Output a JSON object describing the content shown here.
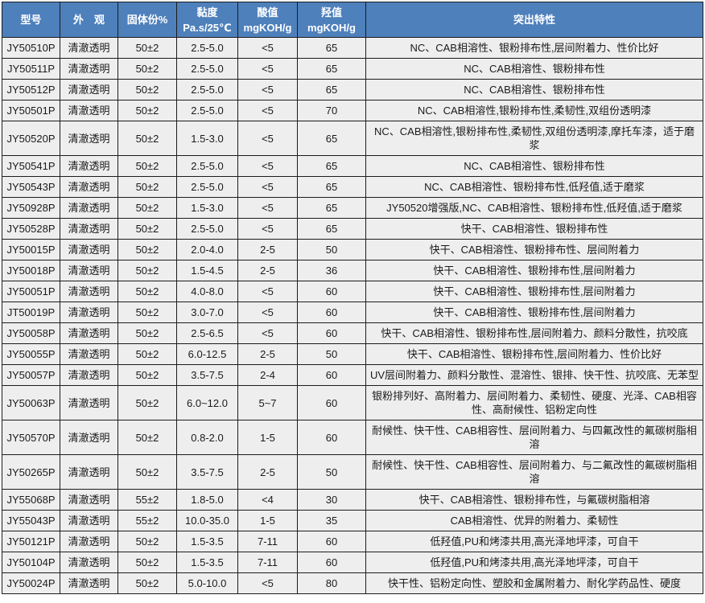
{
  "colors": {
    "header_bg": "#4E80BB",
    "header_text": "#FFFFFF",
    "row_bg": "#EFEEEE",
    "border": "#1C1C1C",
    "cell_text": "#1A1A1A"
  },
  "table": {
    "columns": [
      {
        "key": "model",
        "label": "型号"
      },
      {
        "key": "appearance",
        "label": "外　观"
      },
      {
        "key": "solid",
        "label": "固体份%"
      },
      {
        "key": "viscosity",
        "label": "黏度",
        "label2": "Pa.s/25℃"
      },
      {
        "key": "acid",
        "label": "酸值",
        "label2": "mgKOH/g"
      },
      {
        "key": "hydroxyl",
        "label": "羟值",
        "label2": "mgKOH/g"
      },
      {
        "key": "features",
        "label": "突出特性"
      }
    ],
    "rows": [
      [
        "JY50510P",
        "清澈透明",
        "50±2",
        "2.5-5.0",
        "<5",
        "65",
        "NC、CAB相溶性、银粉排布性,层间附着力、性价比好"
      ],
      [
        "JY50511P",
        "清澈透明",
        "50±2",
        "2.5-5.0",
        "<5",
        "65",
        "NC、CAB相溶性、银粉排布性"
      ],
      [
        "JY50512P",
        "清澈透明",
        "50±2",
        "2.5-5.0",
        "<5",
        "65",
        "NC、CAB相溶性、银粉排布性"
      ],
      [
        "JY50501P",
        "清澈透明",
        "50±2",
        "2.5-5.0",
        "<5",
        "70",
        "NC、CAB相溶性,银粉排布性,柔韧性,双组份透明漆"
      ],
      [
        "JY50520P",
        "清澈透明",
        "50±2",
        "1.5-3.0",
        "<5",
        "65",
        "NC、CAB相溶性,银粉排布性,柔韧性,双组份透明漆,摩托车漆，适于磨浆"
      ],
      [
        "JY50541P",
        "清澈透明",
        "50±2",
        "2.5-5.0",
        "<5",
        "65",
        "NC、CAB相溶性、银粉排布性"
      ],
      [
        "JY50543P",
        "清澈透明",
        "50±2",
        "2.5-5.0",
        "<5",
        "65",
        "NC、CAB相溶性、银粉排布性,低羟值,适于磨浆"
      ],
      [
        "JY50928P",
        "清澈透明",
        "50±2",
        "1.5-3.0",
        "<5",
        "65",
        "JY50520增强版,NC、CAB相溶性、银粉排布性,低羟值,适于磨浆"
      ],
      [
        "JY50528P",
        "清澈透明",
        "50±2",
        "2.5-5.0",
        "<5",
        "65",
        "快干、CAB相溶性、银粉排布性"
      ],
      [
        "JY50015P",
        "清澈透明",
        "50±2",
        "2.0-4.0",
        "2-5",
        "50",
        "快干、CAB相溶性、银粉排布性、层间附着力"
      ],
      [
        "JY50018P",
        "清澈透明",
        "50±2",
        "1.5-4.5",
        "2-5",
        "36",
        "快干、CAB相溶性、银粉排布性,层间附着力"
      ],
      [
        "JY50051P",
        "清澈透明",
        "50±2",
        "4.0-8.0",
        "<5",
        "60",
        "快干、CAB相溶性、银粉排布性,层间附着力"
      ],
      [
        "JT50019P",
        "清澈透明",
        "50±2",
        "3.0-7.0",
        "<5",
        "60",
        "快干、CAB相溶性、银粉排布性,层间附着力"
      ],
      [
        "JY50058P",
        "清澈透明",
        "50±2",
        "2.5-6.5",
        "<5",
        "60",
        "快干、CAB相溶性、银粉排布性,层间附着力、颜料分散性，抗咬底"
      ],
      [
        "JY50055P",
        "清澈透明",
        "50±2",
        "6.0-12.5",
        "2-5",
        "50",
        "快干、CAB相溶性、银粉排布性,层间附着力、性价比好"
      ],
      [
        "JY50057P",
        "清澈透明",
        "50±2",
        "3.5-7.5",
        "2-4",
        "60",
        "UV层间附着力、颜料分散性、混溶性、银排、快干性、抗咬底、无苯型"
      ],
      [
        "JY50063P",
        "清澈透明",
        "50±2",
        "6.0~12.0",
        "5~7",
        "60",
        "银粉排列好、高附着力、层间附着力、柔韧性、硬度、光泽、CAB相容性、高耐候性、铝粉定向性"
      ],
      [
        "JY50570P",
        "清澈透明",
        "50±2",
        "0.8-2.0",
        "1-5",
        "60",
        "耐候性、快干性、CAB相容性、层间附着力、与四氟改性的氟碳树脂相溶"
      ],
      [
        "JY50265P",
        "清澈透明",
        "50±2",
        "3.5-7.5",
        "2-5",
        "50",
        "耐候性、快干性、CAB相容性、层间附着力、与二氟改性的氟碳树脂相溶"
      ],
      [
        "JY55068P",
        "清澈透明",
        "55±2",
        "1.8-5.0",
        "<4",
        "30",
        "快干、CAB相溶性、银粉排布性，与氟碳树脂相溶"
      ],
      [
        "JY55043P",
        "清澈透明",
        "55±2",
        "10.0-35.0",
        "1-5",
        "35",
        "CAB相溶性、优异的附着力、柔韧性"
      ],
      [
        "JY50121P",
        "清澈透明",
        "50±2",
        "1.5-3.5",
        "7-11",
        "60",
        "低羟值,PU和烤漆共用,高光泽地坪漆，可自干"
      ],
      [
        "JY50104P",
        "清澈透明",
        "50±2",
        "1.5-3.5",
        "7-11",
        "60",
        "低羟值,PU和烤漆共用,高光泽地坪漆，可自干"
      ],
      [
        "JY50024P",
        "清澈透明",
        "50±2",
        "5.0-10.0",
        "<5",
        "80",
        "快干性、铝粉定向性、塑胶和金属附着力、耐化学药品性、硬度"
      ]
    ]
  }
}
